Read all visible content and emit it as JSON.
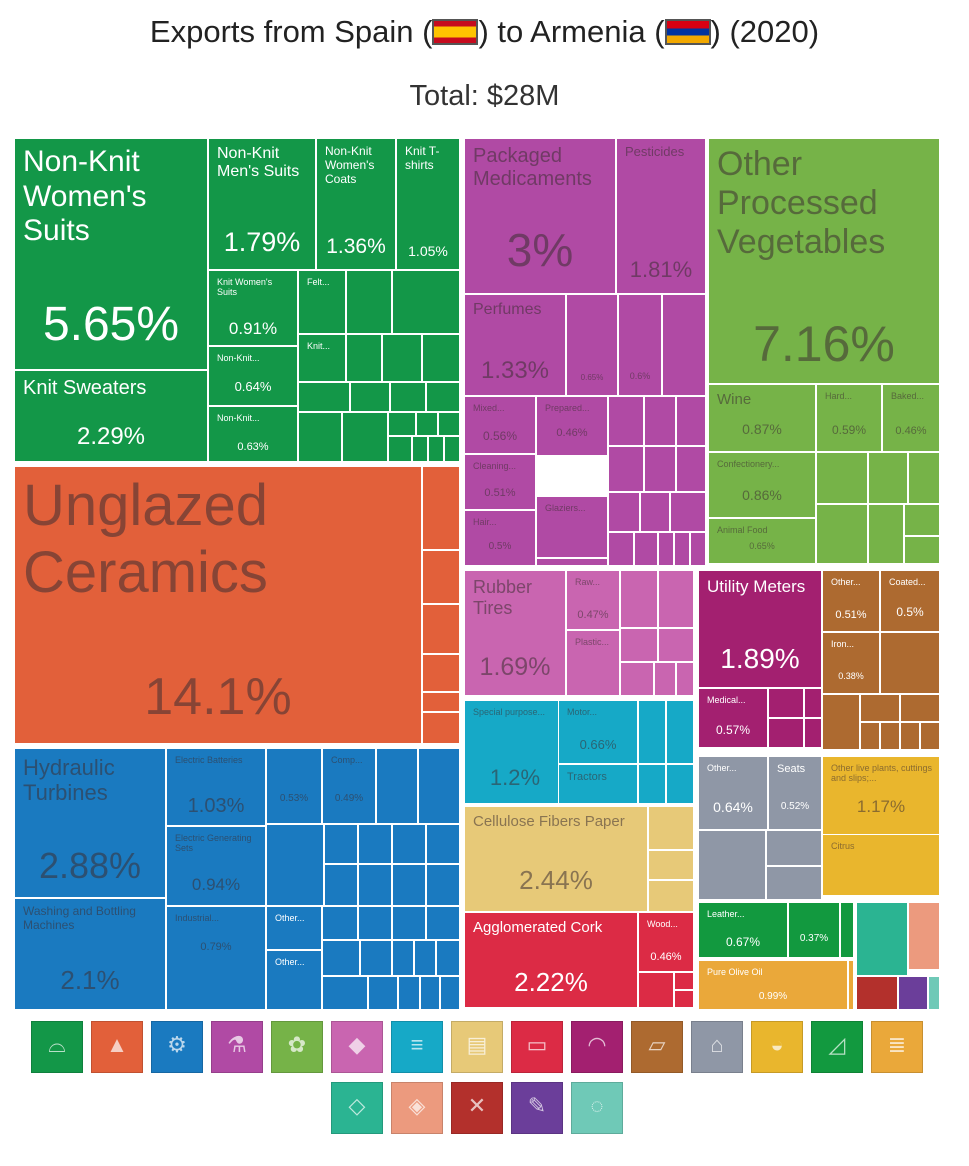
{
  "title_parts": {
    "prefix": "Exports from Spain (",
    "middle": ") to Armenia (",
    "suffix": ") (2020)"
  },
  "subtitle": "Total: $28M",
  "flags": {
    "origin": "spain-flag-icon",
    "destination": "armenia-flag-icon"
  },
  "colors": {
    "textiles": "#139748",
    "stone": "#e2603a",
    "machinery": "#1a7ac0",
    "chemicals": "#b04aa4",
    "vegetables": "#76b348",
    "plastics": "#c965b0",
    "transport": "#16a9c7",
    "paper": "#e7c978",
    "wood": "#dc2b45",
    "instruments": "#a32070",
    "metals": "#ad6a30",
    "misc": "#8f97a6",
    "animals": "#e9b62d",
    "footwear": "#12993f",
    "foodstuffs": "#eaa83a",
    "mineral": "#2bb492",
    "precious": "#ec9a7e",
    "weapons": "#b3302c",
    "arts": "#6b3e9a",
    "animal_hides": "#6fc9b7"
  },
  "chart_data": {
    "type": "treemap",
    "title": "Exports from Spain (ES) to Armenia (AM) (2020)",
    "total": "Total: $28M",
    "tiles": [
      {
        "label": "Non-Knit Women's Suits",
        "value": "5.65%",
        "group": "textiles"
      },
      {
        "label": "Knit Sweaters",
        "value": "2.29%",
        "group": "textiles"
      },
      {
        "label": "Non-Knit Men's Suits",
        "value": "1.79%",
        "group": "textiles"
      },
      {
        "label": "Non-Knit Women's Coats",
        "value": "1.36%",
        "group": "textiles"
      },
      {
        "label": "Knit T-shirts",
        "value": "1.05%",
        "group": "textiles"
      },
      {
        "label": "Knit Women's Suits",
        "value": "0.91%",
        "group": "textiles"
      },
      {
        "label": "Felt...",
        "value": "",
        "group": "textiles"
      },
      {
        "label": "Knit...",
        "value": "",
        "group": "textiles"
      },
      {
        "label": "Non-Knit...",
        "value": "0.64%",
        "group": "textiles"
      },
      {
        "label": "Non-Knit...",
        "value": "0.63%",
        "group": "textiles"
      },
      {
        "label": "Unglazed Ceramics",
        "value": "14.1%",
        "group": "stone"
      },
      {
        "label": "Hydraulic Turbines",
        "value": "2.88%",
        "group": "machinery"
      },
      {
        "label": "Washing and Bottling Machines",
        "value": "2.1%",
        "group": "machinery"
      },
      {
        "label": "Electric Batteries",
        "value": "1.03%",
        "group": "machinery"
      },
      {
        "label": "Electric Generating Sets",
        "value": "0.94%",
        "group": "machinery"
      },
      {
        "label": "Industrial...",
        "value": "0.79%",
        "group": "machinery"
      },
      {
        "label": "",
        "value": "0.53%",
        "group": "machinery"
      },
      {
        "label": "Comp...",
        "value": "0.49%",
        "group": "machinery"
      },
      {
        "label": "Other...",
        "value": "",
        "group": "machinery"
      },
      {
        "label": "Other...",
        "value": "",
        "group": "machinery"
      },
      {
        "label": "Packaged Medicaments",
        "value": "3%",
        "group": "chemicals"
      },
      {
        "label": "Pesticides",
        "value": "1.81%",
        "group": "chemicals"
      },
      {
        "label": "Perfumes",
        "value": "1.33%",
        "group": "chemicals"
      },
      {
        "label": "",
        "value": "0.65%",
        "group": "chemicals"
      },
      {
        "label": "",
        "value": "0.6%",
        "group": "chemicals"
      },
      {
        "label": "Mixed...",
        "value": "0.56%",
        "group": "chemicals"
      },
      {
        "label": "Prepared...",
        "value": "0.46%",
        "group": "chemicals"
      },
      {
        "label": "Cleaning...",
        "value": "0.51%",
        "group": "chemicals"
      },
      {
        "label": "Hair...",
        "value": "0.5%",
        "group": "chemicals"
      },
      {
        "label": "Glaziers...",
        "value": "",
        "group": "chemicals"
      },
      {
        "label": "Other Processed Vegetables",
        "value": "7.16%",
        "group": "vegetables"
      },
      {
        "label": "Wine",
        "value": "0.87%",
        "group": "vegetables"
      },
      {
        "label": "Hard...",
        "value": "0.59%",
        "group": "vegetables"
      },
      {
        "label": "Baked...",
        "value": "0.46%",
        "group": "vegetables"
      },
      {
        "label": "Confectionery...",
        "value": "0.86%",
        "group": "vegetables"
      },
      {
        "label": "Animal Food",
        "value": "0.65%",
        "group": "vegetables"
      },
      {
        "label": "Rubber Tires",
        "value": "1.69%",
        "group": "plastics"
      },
      {
        "label": "Raw...",
        "value": "0.47%",
        "group": "plastics"
      },
      {
        "label": "Plastic...",
        "value": "",
        "group": "plastics"
      },
      {
        "label": "Special purpose...",
        "value": "1.2%",
        "group": "transport"
      },
      {
        "label": "Motor...",
        "value": "0.66%",
        "group": "transport"
      },
      {
        "label": "Tractors",
        "value": "",
        "group": "transport"
      },
      {
        "label": "Cellulose Fibers Paper",
        "value": "2.44%",
        "group": "paper"
      },
      {
        "label": "Agglomerated Cork",
        "value": "2.22%",
        "group": "wood"
      },
      {
        "label": "Wood...",
        "value": "0.46%",
        "group": "wood"
      },
      {
        "label": "Utility Meters",
        "value": "1.89%",
        "group": "instruments"
      },
      {
        "label": "Medical...",
        "value": "0.57%",
        "group": "instruments"
      },
      {
        "label": "Other...",
        "value": "0.51%",
        "group": "metals"
      },
      {
        "label": "Coated...",
        "value": "0.5%",
        "group": "metals"
      },
      {
        "label": "Iron...",
        "value": "0.38%",
        "group": "metals"
      },
      {
        "label": "Other...",
        "value": "0.64%",
        "group": "misc"
      },
      {
        "label": "Seats",
        "value": "0.52%",
        "group": "misc"
      },
      {
        "label": "Other live plants, cuttings and slips;...",
        "value": "1.17%",
        "group": "animals"
      },
      {
        "label": "Citrus",
        "value": "",
        "group": "animals"
      },
      {
        "label": "Leather...",
        "value": "0.67%",
        "group": "footwear"
      },
      {
        "label": "",
        "value": "0.37%",
        "group": "footwear"
      },
      {
        "label": "Pure Olive Oil",
        "value": "0.99%",
        "group": "foodstuffs"
      }
    ],
    "legend": [
      {
        "group": "textiles",
        "icon": "shirt-icon"
      },
      {
        "group": "stone",
        "icon": "bricks-icon"
      },
      {
        "group": "machinery",
        "icon": "gears-icon"
      },
      {
        "group": "chemicals",
        "icon": "flask-icon"
      },
      {
        "group": "vegetables",
        "icon": "wheat-icon"
      },
      {
        "group": "plastics",
        "icon": "drop-icon"
      },
      {
        "group": "transport",
        "icon": "road-icon"
      },
      {
        "group": "paper",
        "icon": "newspaper-icon"
      },
      {
        "group": "wood",
        "icon": "log-icon"
      },
      {
        "group": "instruments",
        "icon": "gauge-icon"
      },
      {
        "group": "metals",
        "icon": "ingot-icon"
      },
      {
        "group": "misc",
        "icon": "chair-icon"
      },
      {
        "group": "animals",
        "icon": "egg-icon"
      },
      {
        "group": "footwear",
        "icon": "shoe-icon"
      },
      {
        "group": "foodstuffs",
        "icon": "food-icon"
      },
      {
        "group": "mineral",
        "icon": "mineral-icon"
      },
      {
        "group": "precious",
        "icon": "gem-icon"
      },
      {
        "group": "weapons",
        "icon": "weapon-icon"
      },
      {
        "group": "arts",
        "icon": "art-icon"
      },
      {
        "group": "animal_hides",
        "icon": "hide-icon"
      }
    ]
  }
}
